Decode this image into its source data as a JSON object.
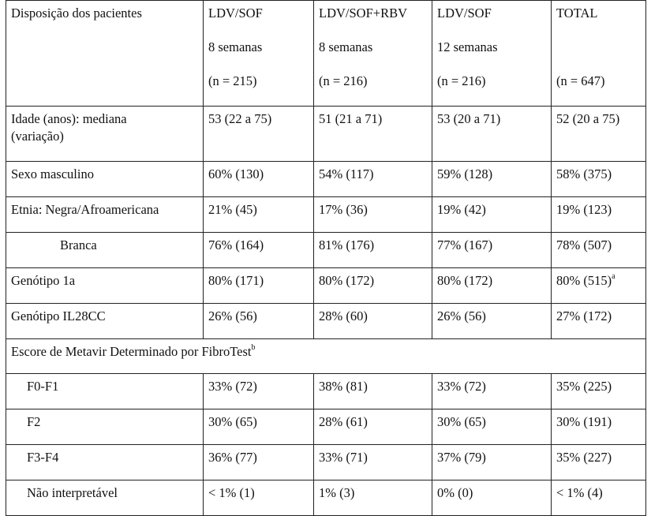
{
  "header": {
    "col0": "Disposição dos pacientes",
    "cols": [
      {
        "name": "LDV/SOF",
        "duration": "8 semanas",
        "n": "(n = 215)"
      },
      {
        "name": "LDV/SOF+RBV",
        "duration": "8 semanas",
        "n": "(n = 216)"
      },
      {
        "name": "LDV/SOF",
        "duration": "12 semanas",
        "n": "(n = 216)"
      },
      {
        "name": "TOTAL",
        "duration": "",
        "n": "(n = 647)"
      }
    ]
  },
  "rows": {
    "age": {
      "label_line1": "Idade (anos): mediana",
      "label_line2": "(variação)",
      "values": [
        "53 (22 a 75)",
        "51 (21 a 71)",
        "53 (20 a 71)",
        "52 (20 a 75)"
      ]
    },
    "male": {
      "label": "Sexo masculino",
      "values": [
        "60% (130)",
        "54% (117)",
        "59% (128)",
        "58% (375)"
      ]
    },
    "black": {
      "label": "Etnia: Negra/Afroamericana",
      "values": [
        "21% (45)",
        "17% (36)",
        "19% (42)",
        "19% (123)"
      ]
    },
    "white": {
      "label": "Branca",
      "values": [
        "76% (164)",
        "81% (176)",
        "77% (167)",
        "78% (507)"
      ]
    },
    "g1a": {
      "label": "Genótipo 1a",
      "values": [
        "80% (171)",
        "80% (172)",
        "80% (172)",
        "80% (515)"
      ],
      "total_sup": "a"
    },
    "il28": {
      "label": "Genótipo IL28CC",
      "values": [
        "26% (56)",
        "28% (60)",
        "26% (56)",
        "27% (172)"
      ]
    },
    "metavir": {
      "label": "Escore de Metavir Determinado por FibroTest",
      "sup": "b"
    },
    "f0f1": {
      "label": "F0-F1",
      "values": [
        "33% (72)",
        "38% (81)",
        "33% (72)",
        "35% (225)"
      ]
    },
    "f2": {
      "label": "F2",
      "values": [
        "30% (65)",
        "28% (61)",
        "30% (65)",
        "30% (191)"
      ]
    },
    "f3f4": {
      "label": "F3-F4",
      "values": [
        "36% (77)",
        "33% (71)",
        "37% (79)",
        "35% (227)"
      ]
    },
    "nonint": {
      "label": "Não interpretável",
      "values": [
        "< 1% (1)",
        "1% (3)",
        "0% (0)",
        "< 1% (4)"
      ]
    }
  }
}
